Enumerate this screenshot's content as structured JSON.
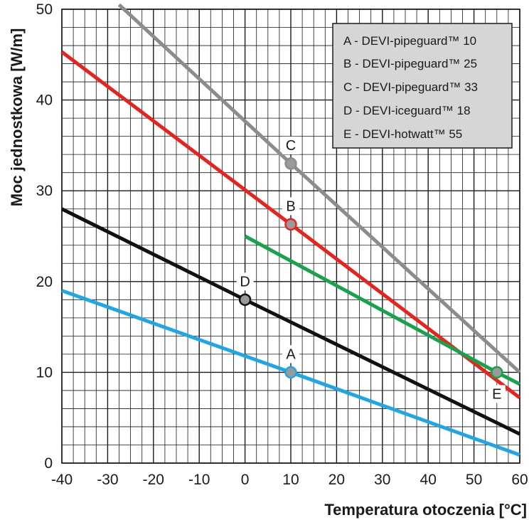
{
  "chart_data": {
    "type": "line",
    "title": "",
    "xlabel": "Temperatura otoczenia [°C]",
    "ylabel": "Moc jednostkowa [W/m]",
    "xlim": [
      -40,
      60
    ],
    "ylim": [
      0,
      50
    ],
    "x_ticks": [
      "-40",
      "-30",
      "-20",
      "-10",
      "0",
      "10",
      "20",
      "30",
      "40",
      "50",
      "60"
    ],
    "y_ticks": [
      "0",
      "10",
      "20",
      "30",
      "40",
      "50"
    ],
    "grid": true,
    "legend_position": "top-right",
    "legend": [
      "A - DEVI-pipeguard™ 10",
      "B - DEVI-pipeguard™ 25",
      "C - DEVI-pipeguard™ 33",
      "D - DEVI-iceguard™ 18",
      "E - DEVI-hotwatt™ 55"
    ],
    "series": [
      {
        "label": "A",
        "color": "#1ea6e6",
        "x": [
          -40,
          10,
          60
        ],
        "y": [
          19,
          10,
          0.9
        ],
        "marker": {
          "x": 10,
          "y": 10
        }
      },
      {
        "label": "B",
        "color": "#e8231e",
        "x": [
          -40,
          10,
          60
        ],
        "y": [
          45.3,
          26.3,
          7.2
        ],
        "marker": {
          "x": 10,
          "y": 26.3
        }
      },
      {
        "label": "C",
        "color": "#8c8c8c",
        "x": [
          -27.5,
          10,
          60
        ],
        "y": [
          50.5,
          33,
          10
        ],
        "marker": {
          "x": 10,
          "y": 33
        }
      },
      {
        "label": "D",
        "color": "#111111",
        "x": [
          -40,
          0,
          60
        ],
        "y": [
          28,
          18,
          3.2
        ],
        "marker": {
          "x": 0,
          "y": 18
        }
      },
      {
        "label": "E",
        "color": "#16a34a",
        "x": [
          0,
          55,
          60
        ],
        "y": [
          25,
          10,
          8.7
        ],
        "marker": {
          "x": 55,
          "y": 10
        }
      }
    ]
  }
}
